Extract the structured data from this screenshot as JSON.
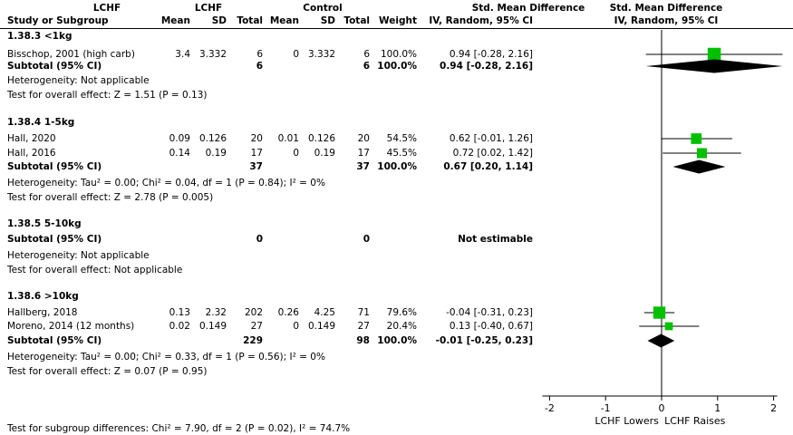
{
  "header": {
    "study_col": "Study or Subgroup",
    "group1": "LCHF",
    "group2": "Control",
    "mean": "Mean",
    "sd": "SD",
    "total": "Total",
    "weight": "Weight",
    "effect_title": "Std. Mean Difference",
    "effect_method": "IV, Random, 95% CI",
    "plot_title": "Std. Mean Difference",
    "plot_method": "IV, Random, 95% CI"
  },
  "chart_data": {
    "type": "forest",
    "x_range": [
      -2,
      2
    ],
    "x_ticks": [
      "-2",
      "-1",
      "0",
      "1",
      "2"
    ],
    "xlabel_left": "LCHF Lowers",
    "xlabel_right": "LCHF Raises",
    "marker_color": "#00c000",
    "subgroups": [
      {
        "title": "1.38.3 <1kg",
        "studies": [
          {
            "name": "Bisschop, 2001 (high carb)",
            "mean1": "3.4",
            "sd1": "3.332",
            "n1": "6",
            "mean2": "0",
            "sd2": "3.332",
            "n2": "6",
            "weight": "100.0%",
            "ci_text": "0.94 [-0.28, 2.16]",
            "est": 0.94,
            "lo": -0.28,
            "hi": 2.16,
            "w": 100.0
          }
        ],
        "subtotal": {
          "label": "Subtotal (95% CI)",
          "n1": "6",
          "n2": "6",
          "weight": "100.0%",
          "ci_text": "0.94 [-0.28, 2.16]",
          "est": 0.94,
          "lo": -0.28,
          "hi": 2.16
        },
        "heterogeneity": "Heterogeneity: Not applicable",
        "overall": "Test for overall effect: Z = 1.51 (P = 0.13)"
      },
      {
        "title": "1.38.4 1-5kg",
        "studies": [
          {
            "name": "Hall, 2020",
            "mean1": "0.09",
            "sd1": "0.126",
            "n1": "20",
            "mean2": "0.01",
            "sd2": "0.126",
            "n2": "20",
            "weight": "54.5%",
            "ci_text": "0.62 [-0.01, 1.26]",
            "est": 0.62,
            "lo": -0.01,
            "hi": 1.26,
            "w": 54.5
          },
          {
            "name": "Hall, 2016",
            "mean1": "0.14",
            "sd1": "0.19",
            "n1": "17",
            "mean2": "0",
            "sd2": "0.19",
            "n2": "17",
            "weight": "45.5%",
            "ci_text": "0.72 [0.02, 1.42]",
            "est": 0.72,
            "lo": 0.02,
            "hi": 1.42,
            "w": 45.5
          }
        ],
        "subtotal": {
          "label": "Subtotal (95% CI)",
          "n1": "37",
          "n2": "37",
          "weight": "100.0%",
          "ci_text": "0.67 [0.20, 1.14]",
          "est": 0.67,
          "lo": 0.2,
          "hi": 1.14
        },
        "heterogeneity": "Heterogeneity: Tau² = 0.00; Chi² = 0.04, df = 1 (P = 0.84); I² = 0%",
        "overall": "Test for overall effect: Z = 2.78 (P = 0.005)"
      },
      {
        "title": "1.38.5 5-10kg",
        "studies": [],
        "subtotal": {
          "label": "Subtotal (95% CI)",
          "n1": "0",
          "n2": "0",
          "weight": "",
          "ci_text": "Not estimable",
          "est": null,
          "lo": null,
          "hi": null
        },
        "heterogeneity": "Heterogeneity: Not applicable",
        "overall": "Test for overall effect: Not applicable"
      },
      {
        "title": "1.38.6 >10kg",
        "studies": [
          {
            "name": "Hallberg, 2018",
            "mean1": "0.13",
            "sd1": "2.32",
            "n1": "202",
            "mean2": "0.26",
            "sd2": "4.25",
            "n2": "71",
            "weight": "79.6%",
            "ci_text": "-0.04 [-0.31, 0.23]",
            "est": -0.04,
            "lo": -0.31,
            "hi": 0.23,
            "w": 79.6
          },
          {
            "name": "Moreno, 2014 (12 months)",
            "mean1": "0.02",
            "sd1": "0.149",
            "n1": "27",
            "mean2": "0",
            "sd2": "0.149",
            "n2": "27",
            "weight": "20.4%",
            "ci_text": "0.13 [-0.40, 0.67]",
            "est": 0.13,
            "lo": -0.4,
            "hi": 0.67,
            "w": 20.4
          }
        ],
        "subtotal": {
          "label": "Subtotal (95% CI)",
          "n1": "229",
          "n2": "98",
          "weight": "100.0%",
          "ci_text": "-0.01 [-0.25, 0.23]",
          "est": -0.01,
          "lo": -0.25,
          "hi": 0.23
        },
        "heterogeneity": "Heterogeneity: Tau² = 0.00; Chi² = 0.33, df = 1 (P = 0.56); I² = 0%",
        "overall": "Test for overall effect: Z = 0.07 (P = 0.95)"
      }
    ],
    "subgroup_test": "Test for subgroup differences: Chi² = 7.90, df = 2 (P = 0.02), I² = 74.7%"
  }
}
